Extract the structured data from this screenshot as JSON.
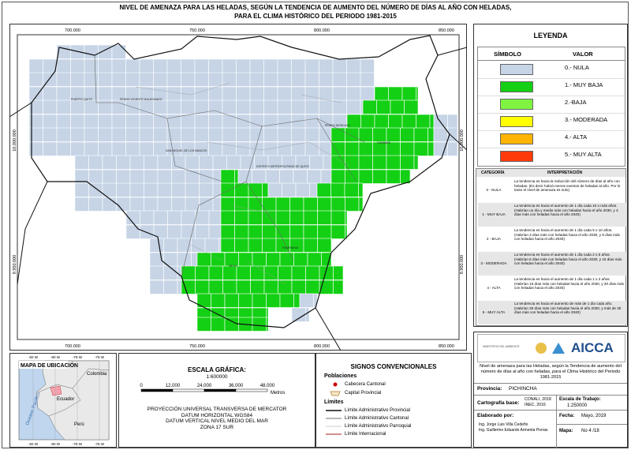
{
  "title": [
    "NIVEL DE AMENAZA PARA LAS HELADAS, SEGÚN LA TENDENCIA DE AUMENTO DEL NÚMERO DE DÍAS AL AÑO CON HELADAS,",
    "PARA EL CLIMA HISTÓRICO DEL PERIODO 1981-2015"
  ],
  "map": {
    "x_labels": [
      "700.000",
      "750.000",
      "800.000",
      "850.000"
    ],
    "y_labels": [
      "10.000.000",
      "9.950.000"
    ],
    "places": [
      "PUERTO QUITO",
      "PEDRO VICENTE MALDONADO",
      "SAN MIGUEL DE LOS BANCOS",
      "DISTRITO METROPOLITANO DE QUITO",
      "PEDRO MONCAYO",
      "CAYAMBE",
      "RUMIÑAHUI",
      "MEJIA"
    ]
  },
  "legend": {
    "title": "LEYENDA",
    "headers": [
      "SÍMBOLO",
      "VALOR"
    ],
    "items": [
      {
        "label": "0.- NULA",
        "color": "#c6d4e6"
      },
      {
        "label": "1.- MUY BAJA",
        "color": "#14d014"
      },
      {
        "label": "2.-BAJA",
        "color": "#7ff542"
      },
      {
        "label": "3.- MODERADA",
        "color": "#ffff00"
      },
      {
        "label": "4.- ALTA",
        "color": "#ffb400"
      },
      {
        "label": "5.- MUY ALTA",
        "color": "#ff3a0a"
      }
    ]
  },
  "interpretation": {
    "headers": [
      "CATEGORÍA",
      "INTERPRETACIÓN"
    ],
    "rows": [
      [
        "0 - NULA",
        "La tendencia es hacia la reducción del número de días al año con heladas. (Es decir habrá menos eventos de heladas al año. Por lo tanto el nivel de amenaza es nulo)"
      ],
      [
        "1 - MUY BAJA",
        "La tendencia es hacia el aumento de 1 día cada 10 o más años. (Habrían un día y medio más con heladas hacia el año 2030, y 3 días más con heladas hacia el año 2040)"
      ],
      [
        "2 - BAJA",
        "La tendencia es hacia el aumento de 1 día cada 5 o 10 años. (Habrían 3 días más con heladas hacia el año 2030, y 6 días más con heladas hacia el año 2040)"
      ],
      [
        "3 - MODERADA",
        "La tendencia es hacia el aumento de 1 día cada 2 o 5 años. (Habrían 6 días más con heladas hacia el año 2030, y 15 días más con heladas hacia el año 2040)"
      ],
      [
        "4 - ALTA",
        "La tendencia es hacia el aumento de 1 día cada 1 o 2 años. (Habrían 15 días más con heladas hacia el año 2030, y 30 días más con heladas hacia el año 2040)"
      ],
      [
        "5 - MUY ALTA",
        "La tendencia es hacia el aumento de más de 1 día cada año. (Habrían 30 días más con heladas hacia el año 2030, y más de 30 días más con heladas hacia el año 2040)"
      ]
    ]
  },
  "location": {
    "title": "MAPA DE UBICACIÓN",
    "countries": [
      "Colombia",
      "Ecuador",
      "Perú"
    ],
    "ocean": "Oceano Pacífico",
    "x_labels": [
      "-82 W",
      "-80 W",
      "-78 W",
      "-76 W"
    ]
  },
  "scale": {
    "title": "ESCALA GRÁFICA:",
    "ratio": "1:600000",
    "ticks": [
      "0",
      "12.000",
      "24.000",
      "36.000",
      "48.000"
    ],
    "unit": "Metros",
    "projection": [
      "PROYECCIÓN UNIVERSAL TRANSVERSA DE MERCATOR",
      "DATUM HORIZONTAL WGS84",
      "DATUM VERTICAL NIVEL MEDIO DEL MAR",
      "ZONA 17 SUR"
    ]
  },
  "conventions": {
    "title": "SIGNOS CONVENCIONALES",
    "populations": "Poblaciones",
    "population_items": [
      "Cabecera Cantonal",
      "Capital Provincial"
    ],
    "limits": "Límites",
    "limit_items": [
      "Límite Administrativo Provincial",
      "Límite Administrativo Cantonal",
      "Límite Administrativo Parroquial",
      "Límite Internacional"
    ]
  },
  "info": {
    "ministry": "MINISTERIO DEL AMBIENTE",
    "brand": "AICCA",
    "description": "Nivel de amenaza para las Heladas, según la Tendencia de aumento del número de días al año con heladas, para el Clima Histórico del Periodo 1981-2015",
    "province_label": "Provincia:",
    "province": "PICHINCHA",
    "base_label": "Cartografía base:",
    "base": "CONALI, 2018 INEC, 2016",
    "scale_label": "Escala de Trabajo:",
    "scale": "1:250000",
    "author_label": "Elaborado por:",
    "authors": [
      "Ing. Jorge Luis Villa Cedeño",
      "Ing. Guillermo Eduardo Armenta Porras"
    ],
    "date_label": "Fecha:",
    "date": "Mayo, 2019",
    "map_label": "Mapa:",
    "map": "No 4 /18"
  }
}
